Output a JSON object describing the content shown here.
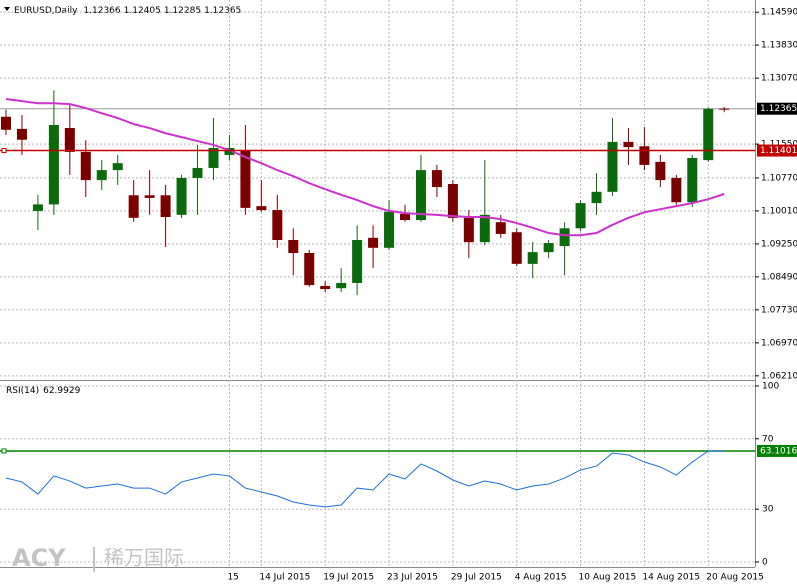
{
  "chart_data": [
    {
      "type": "candlestick",
      "title": "EURUSD,Daily",
      "categories": [
        null,
        null,
        null,
        null,
        null,
        null,
        null,
        null,
        null,
        null,
        null,
        null,
        null,
        null,
        "15",
        null,
        "14 Jul 2015",
        null,
        null,
        null,
        "19 Jul 2015",
        null,
        null,
        null,
        "23 Jul 2015",
        null,
        null,
        null,
        "29 Jul 2015",
        null,
        null,
        null,
        "4 Aug 2015",
        null,
        null,
        null,
        "10 Aug 2015",
        null,
        null,
        null,
        "14 Aug 2015",
        null,
        null,
        null,
        "20 Aug 2015",
        null
      ],
      "open": [
        1.1218,
        1.119,
        1.1001,
        1.1016,
        1.1192,
        1.1137,
        1.1072,
        1.1095,
        1.1037,
        1.1037,
        1.1037,
        1.0992,
        1.1077,
        1.11,
        1.113,
        1.1141,
        1.1012,
        1.1003,
        1.0934,
        1.0904,
        1.0828,
        1.0823,
        1.0835,
        1.0939,
        1.0916,
        1.0994,
        1.098,
        1.1095,
        1.1063,
        1.0985,
        1.0929,
        1.0975,
        1.0952,
        1.0879,
        1.0906,
        1.092,
        1.0961,
        1.1019,
        1.1045,
        1.116,
        1.115,
        1.1114,
        1.1077,
        1.1021,
        1.1118,
        1.12366
      ],
      "high": [
        1.1234,
        1.1222,
        1.1038,
        1.1279,
        1.1245,
        1.1164,
        1.1118,
        1.113,
        1.1072,
        1.1095,
        1.1061,
        1.1084,
        1.1153,
        1.1215,
        1.1176,
        1.1199,
        1.1072,
        1.1038,
        1.0961,
        1.0911,
        1.0839,
        1.0869,
        1.0968,
        1.0968,
        1.1026,
        1.1015,
        1.113,
        1.1107,
        1.1072,
        1.1003,
        1.1118,
        1.0992,
        1.0961,
        1.0929,
        1.0934,
        1.0975,
        1.1026,
        1.1088,
        1.1215,
        1.1192,
        1.1194,
        1.113,
        1.1084,
        1.113,
        1.124,
        1.12405
      ],
      "low": [
        1.1176,
        1.113,
        1.0957,
        1.0992,
        1.1084,
        1.1033,
        1.1049,
        1.1061,
        1.0976,
        1.0992,
        1.0918,
        1.0985,
        1.0992,
        1.1072,
        1.1118,
        1.0992,
        1.0999,
        1.0916,
        1.0853,
        1.0826,
        1.0814,
        1.0814,
        1.0807,
        1.0869,
        1.0911,
        1.0976,
        1.0976,
        1.1033,
        1.0976,
        1.0892,
        1.0922,
        1.0939,
        1.0874,
        1.0846,
        1.0892,
        1.0853,
        1.0954,
        1.0992,
        1.1035,
        1.1107,
        1.1095,
        1.1056,
        1.1015,
        1.101,
        1.1114,
        1.12285
      ],
      "close": [
        1.1188,
        1.1165,
        1.1016,
        1.1199,
        1.1137,
        1.1072,
        1.1095,
        1.1111,
        1.0985,
        1.1031,
        1.0987,
        1.1077,
        1.11,
        1.1146,
        1.1146,
        1.1008,
        1.1003,
        1.0934,
        1.0904,
        1.083,
        1.0821,
        1.0835,
        1.0934,
        1.0916,
        1.0999,
        1.098,
        1.1095,
        1.1056,
        1.0985,
        1.0929,
        1.0992,
        1.0948,
        1.0879,
        1.0906,
        1.0927,
        1.0961,
        1.1019,
        1.1045,
        1.116,
        1.1148,
        1.1107,
        1.1072,
        1.1021,
        1.1123,
        1.1236,
        1.12365
      ],
      "up_color": "#0b6a0b",
      "down_color": "#7a0000",
      "ma": {
        "color": "#cc33cc",
        "values": [
          1.1259,
          1.1254,
          1.1249,
          1.1249,
          1.1247,
          1.1238,
          1.1226,
          1.1215,
          1.1201,
          1.1192,
          1.118,
          1.1171,
          1.1162,
          1.1153,
          1.1141,
          1.1125,
          1.1111,
          1.1095,
          1.1081,
          1.1065,
          1.1051,
          1.1038,
          1.1026,
          1.1012,
          1.1001,
          1.0996,
          1.0994,
          1.0992,
          1.0989,
          1.0987,
          1.0987,
          1.0982,
          1.0973,
          1.0962,
          1.095,
          1.0945,
          1.0945,
          1.095,
          1.0969,
          1.0985,
          1.0998,
          1.1005,
          1.1012,
          1.1019,
          1.1028,
          1.104
        ]
      },
      "hlines": [
        {
          "value": 1.11401,
          "color": "#c00000"
        }
      ],
      "ylim": [
        1.0616,
        1.1487
      ],
      "yticks": [
        {
          "value": 1.1459,
          "label": "1.14590"
        },
        {
          "value": 1.1383,
          "label": "1.13830"
        },
        {
          "value": 1.1307,
          "label": "1.13070"
        },
        {
          "value": 1.1155,
          "label": "1.11550"
        },
        {
          "value": 1.1077,
          "label": "1.10770"
        },
        {
          "value": 1.1001,
          "label": "1.10010"
        },
        {
          "value": 1.0925,
          "label": "1.09250"
        },
        {
          "value": 1.0849,
          "label": "1.08490"
        },
        {
          "value": 1.0773,
          "label": "1.07730"
        },
        {
          "value": 1.0697,
          "label": "1.06970"
        },
        {
          "value": 1.0621,
          "label": "1.06210"
        }
      ],
      "grid": true,
      "annotations": [
        "ACY",
        "稀万国际"
      ]
    },
    {
      "type": "line",
      "title": "RSI(14)",
      "color": "#1e6fd9",
      "values": [
        47.7,
        45.5,
        38.6,
        48.9,
        46.0,
        42.0,
        43.2,
        44.3,
        42.0,
        42.0,
        38.6,
        45.5,
        47.7,
        50.0,
        48.9,
        42.0,
        39.8,
        37.5,
        34.1,
        32.4,
        31.3,
        32.4,
        42.0,
        40.9,
        50.0,
        47.2,
        55.7,
        51.7,
        46.6,
        43.2,
        46.0,
        44.3,
        40.9,
        43.2,
        44.3,
        47.7,
        52.3,
        54.5,
        61.9,
        60.8,
        56.8,
        54.0,
        49.4,
        56.8,
        63.1,
        62.9929
      ],
      "hlines": [
        {
          "value": 63.1016,
          "color": "#008000"
        }
      ],
      "ylim": [
        0,
        100
      ],
      "yticks": [
        100,
        70,
        30,
        0
      ],
      "grid": true
    }
  ]
}
